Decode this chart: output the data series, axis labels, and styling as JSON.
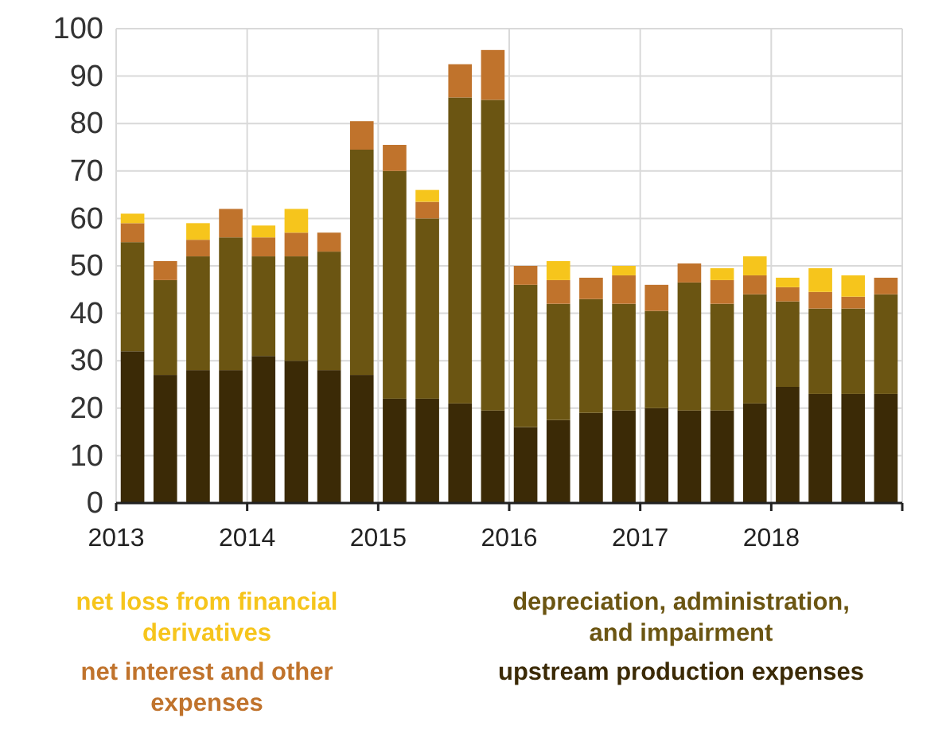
{
  "chart_data": {
    "type": "bar",
    "stacked": true,
    "x": [
      2013.125,
      2013.375,
      2013.625,
      2013.875,
      2014.125,
      2014.375,
      2014.625,
      2014.875,
      2015.125,
      2015.375,
      2015.625,
      2015.875,
      2016.125,
      2016.375,
      2016.625,
      2016.875,
      2017.125,
      2017.375,
      2017.625,
      2017.875,
      2018.125,
      2018.375,
      2018.625,
      2018.875
    ],
    "xlim": [
      2013,
      2019
    ],
    "xticks": [
      2013,
      2014,
      2015,
      2016,
      2017,
      2018,
      {
        "value": 2019,
        "label": null
      }
    ],
    "ylim": [
      0,
      100
    ],
    "yticks": [
      0,
      10,
      20,
      30,
      40,
      50,
      60,
      70,
      80,
      90,
      100
    ],
    "grid": true,
    "legend": "bottom",
    "series": [
      {
        "name": "upstream production expenses",
        "color": "#3b2a06",
        "values": [
          32,
          27,
          28,
          28,
          31,
          30,
          28,
          27,
          22,
          22,
          21,
          19.5,
          16,
          17.5,
          19,
          19.5,
          20,
          19.5,
          19.5,
          21,
          24.5,
          23,
          23,
          23
        ]
      },
      {
        "name": "depreciation, administration, and impairment",
        "color": "#6b5512",
        "values": [
          23,
          20,
          24,
          28,
          21,
          22,
          25,
          47.5,
          48,
          38,
          64.5,
          65.5,
          30,
          24.5,
          24,
          22.5,
          20.5,
          27,
          22.5,
          23,
          18,
          18,
          18,
          21
        ]
      },
      {
        "name": "net interest and other expenses",
        "color": "#c0732c",
        "values": [
          4,
          4,
          3.5,
          6,
          4,
          5,
          4,
          6,
          5.5,
          3.5,
          7,
          10.5,
          4,
          5,
          4.5,
          6,
          5.5,
          4,
          5,
          4,
          3,
          3.5,
          2.5,
          3.5
        ]
      },
      {
        "name": "net loss from financial derivatives",
        "color": "#f6c51c",
        "values": [
          2,
          0,
          3.5,
          0,
          2.5,
          5,
          0,
          0,
          0,
          2.5,
          0,
          0,
          0,
          4,
          0,
          2,
          0,
          0,
          2.5,
          4,
          2,
          5,
          4.5,
          0
        ]
      }
    ]
  }
}
